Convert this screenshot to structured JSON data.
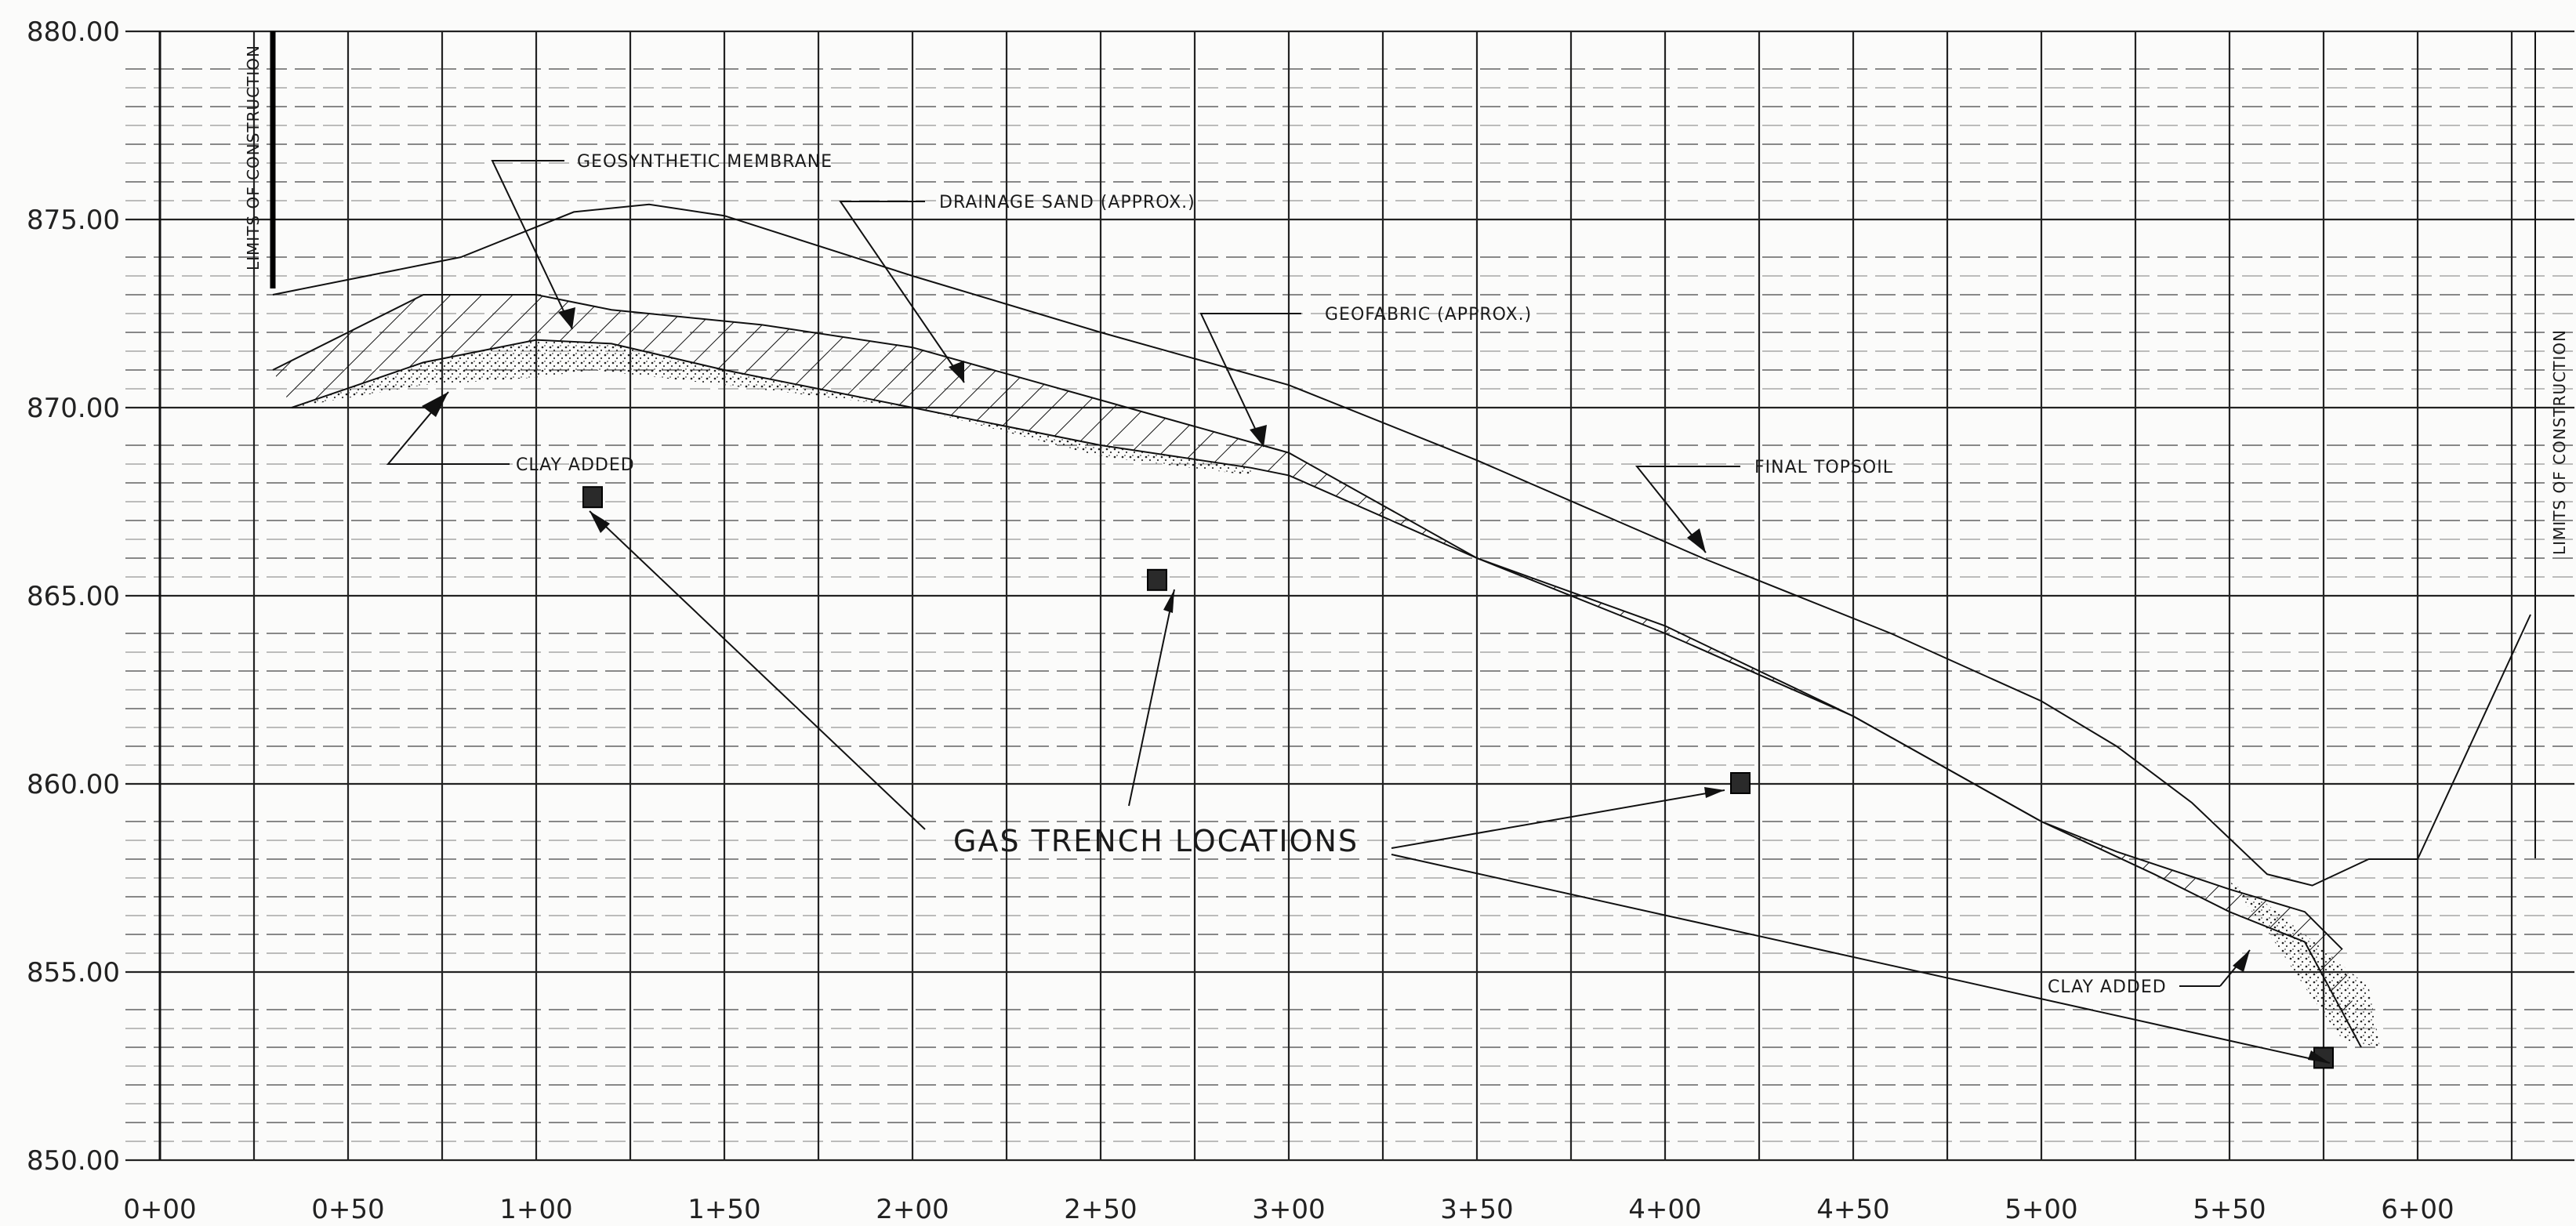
{
  "diagram": {
    "y_axis": {
      "min": 850.0,
      "max": 880.0,
      "major_step": 5.0,
      "minor_step": 1.0,
      "labels": [
        "880.00",
        "875.00",
        "870.00",
        "865.00",
        "860.00",
        "855.00",
        "850.00"
      ]
    },
    "x_axis": {
      "labels": [
        "0+00",
        "0+50",
        "1+00",
        "1+50",
        "2+00",
        "2+50",
        "3+00",
        "3+50",
        "4+00",
        "4+50",
        "5+00",
        "5+50",
        "6+00"
      ]
    },
    "annotations": {
      "limits_left": "LIMITS OF CONSTRUCTION",
      "limits_right": "LIMITS OF CONSTRUCTION",
      "geosynthetic_membrane": "GEOSYNTHETIC MEMBRANE",
      "drainage_sand": "DRAINAGE SAND (APPROX.)",
      "geofabric": "GEOFABRIC (APPROX.)",
      "clay_added_left": "CLAY ADDED",
      "final_topsoil": "FINAL TOPSOIL",
      "gas_trench_locations": "GAS TRENCH LOCATIONS",
      "clay_added_right": "CLAY ADDED"
    },
    "profiles": {
      "final_topsoil": [
        [
          0.3,
          873.0
        ],
        [
          0.8,
          874.0
        ],
        [
          1.1,
          875.2
        ],
        [
          1.3,
          875.4
        ],
        [
          1.5,
          875.1
        ],
        [
          2.0,
          873.5
        ],
        [
          2.5,
          872.0
        ],
        [
          3.0,
          870.6
        ],
        [
          3.5,
          868.6
        ],
        [
          4.1,
          866.0
        ],
        [
          4.6,
          864.0
        ],
        [
          5.0,
          862.2
        ],
        [
          5.2,
          861.0
        ],
        [
          5.4,
          859.5
        ],
        [
          5.6,
          857.6
        ],
        [
          5.72,
          857.3
        ],
        [
          5.87,
          858.0
        ],
        [
          6.0,
          858.0
        ],
        [
          6.3,
          864.5
        ]
      ],
      "drainage_top": [
        [
          0.3,
          871.0
        ],
        [
          0.7,
          873.0
        ],
        [
          1.0,
          873.0
        ],
        [
          1.2,
          872.6
        ],
        [
          1.6,
          872.2
        ],
        [
          2.0,
          871.6
        ],
        [
          2.5,
          870.2
        ],
        [
          3.0,
          868.8
        ],
        [
          3.5,
          866.0
        ],
        [
          4.0,
          864.2
        ],
        [
          4.5,
          861.8
        ],
        [
          5.0,
          859.0
        ],
        [
          5.2,
          858.2
        ],
        [
          5.5,
          857.2
        ],
        [
          5.7,
          856.6
        ],
        [
          5.8,
          855.6
        ]
      ],
      "membrane": [
        [
          0.35,
          870.0
        ],
        [
          0.7,
          871.2
        ],
        [
          1.0,
          871.8
        ],
        [
          1.2,
          871.7
        ],
        [
          1.5,
          871.0
        ],
        [
          2.0,
          870.0
        ],
        [
          2.5,
          869.0
        ],
        [
          2.9,
          868.4
        ],
        [
          3.0,
          868.2
        ],
        [
          3.5,
          866.0
        ],
        [
          4.0,
          864.0
        ],
        [
          4.5,
          861.8
        ],
        [
          5.0,
          859.0
        ],
        [
          5.3,
          857.6
        ],
        [
          5.5,
          856.6
        ],
        [
          5.7,
          855.8
        ],
        [
          5.85,
          853.0
        ]
      ],
      "clay_left_bottom": [
        [
          0.35,
          870.0
        ],
        [
          0.7,
          870.6
        ],
        [
          1.0,
          870.8
        ],
        [
          1.15,
          871.0
        ],
        [
          1.5,
          870.6
        ],
        [
          2.0,
          870.0
        ],
        [
          2.5,
          868.7
        ],
        [
          2.9,
          868.2
        ]
      ],
      "clay_right_top": [
        [
          5.5,
          857.4
        ],
        [
          5.6,
          856.8
        ],
        [
          5.75,
          855.6
        ],
        [
          5.87,
          854.6
        ]
      ],
      "clay_right_bottom": [
        [
          5.5,
          857.4
        ],
        [
          5.62,
          855.8
        ],
        [
          5.7,
          854.6
        ],
        [
          5.8,
          853.2
        ],
        [
          5.9,
          853.0
        ],
        [
          5.87,
          854.6
        ]
      ]
    },
    "gas_trenches": [
      [
        1.15,
        867.6
      ],
      [
        2.65,
        865.4
      ],
      [
        4.2,
        860.0
      ],
      [
        5.75,
        852.7
      ]
    ]
  }
}
